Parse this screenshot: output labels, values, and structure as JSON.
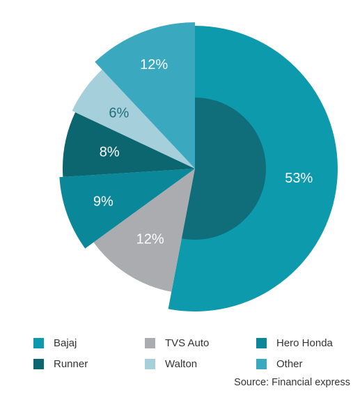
{
  "chart_data": {
    "type": "pie",
    "slices": [
      {
        "label": "Bajaj",
        "value": 53,
        "display": "53%",
        "color": "#0e9aad",
        "inner": "#0f6e7a"
      },
      {
        "label": "TVS Auto",
        "value": 12,
        "display": "12%",
        "color": "#abacaf"
      },
      {
        "label": "Hero Honda",
        "value": 9,
        "display": "9%",
        "color": "#0a8799"
      },
      {
        "label": "Runner",
        "value": 8,
        "display": "8%",
        "color": "#0b6670"
      },
      {
        "label": "Walton",
        "value": 6,
        "display": "6%",
        "color": "#a6cfdc"
      },
      {
        "label": "Other",
        "value": 12,
        "display": "12%",
        "color": "#3aa9c0"
      }
    ],
    "legend_position": "bottom",
    "source": "Source: Financial express"
  }
}
